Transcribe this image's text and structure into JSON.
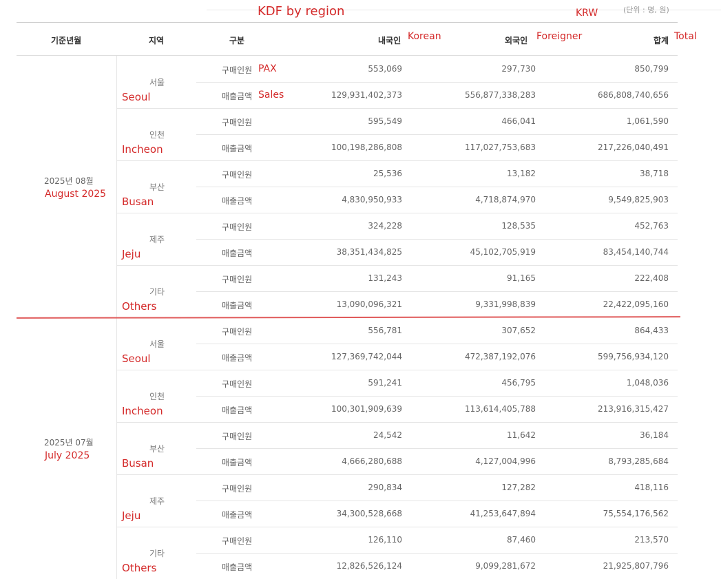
{
  "annotations": {
    "title": "KDF by region",
    "currency": "KRW",
    "korean": "Korean",
    "foreigner": "Foreigner",
    "total": "Total",
    "pax": "PAX",
    "sales": "Sales"
  },
  "unit_note": "(단위 : 명, 원)",
  "headers": {
    "period": "기준년월",
    "region": "지역",
    "category": "구분",
    "korean": "내국인",
    "foreigner": "외국인",
    "total": "합계"
  },
  "categories": {
    "pax": "구매인원",
    "sales": "매출금액"
  },
  "periods": [
    {
      "label": "2025년 08월",
      "en": "August 2025",
      "regions": [
        {
          "kr": "서울",
          "en": "Seoul",
          "pax": [
            "553,069",
            "297,730",
            "850,799"
          ],
          "sales": [
            "129,931,402,373",
            "556,877,338,283",
            "686,808,740,656"
          ]
        },
        {
          "kr": "인천",
          "en": "Incheon",
          "pax": [
            "595,549",
            "466,041",
            "1,061,590"
          ],
          "sales": [
            "100,198,286,808",
            "117,027,753,683",
            "217,226,040,491"
          ]
        },
        {
          "kr": "부산",
          "en": "Busan",
          "pax": [
            "25,536",
            "13,182",
            "38,718"
          ],
          "sales": [
            "4,830,950,933",
            "4,718,874,970",
            "9,549,825,903"
          ]
        },
        {
          "kr": "제주",
          "en": "Jeju",
          "pax": [
            "324,228",
            "128,535",
            "452,763"
          ],
          "sales": [
            "38,351,434,825",
            "45,102,705,919",
            "83,454,140,744"
          ]
        },
        {
          "kr": "기타",
          "en": "Others",
          "pax": [
            "131,243",
            "91,165",
            "222,408"
          ],
          "sales": [
            "13,090,096,321",
            "9,331,998,839",
            "22,422,095,160"
          ]
        }
      ]
    },
    {
      "label": "2025년 07월",
      "en": "July 2025",
      "regions": [
        {
          "kr": "서울",
          "en": "Seoul",
          "pax": [
            "556,781",
            "307,652",
            "864,433"
          ],
          "sales": [
            "127,369,742,044",
            "472,387,192,076",
            "599,756,934,120"
          ]
        },
        {
          "kr": "인천",
          "en": "Incheon",
          "pax": [
            "591,241",
            "456,795",
            "1,048,036"
          ],
          "sales": [
            "100,301,909,639",
            "113,614,405,788",
            "213,916,315,427"
          ]
        },
        {
          "kr": "부산",
          "en": "Busan",
          "pax": [
            "24,542",
            "11,642",
            "36,184"
          ],
          "sales": [
            "4,666,280,688",
            "4,127,004,996",
            "8,793,285,684"
          ]
        },
        {
          "kr": "제주",
          "en": "Jeju",
          "pax": [
            "290,834",
            "127,282",
            "418,116"
          ],
          "sales": [
            "34,300,528,668",
            "41,253,647,894",
            "75,554,176,562"
          ]
        },
        {
          "kr": "기타",
          "en": "Others",
          "pax": [
            "126,110",
            "87,460",
            "213,570"
          ],
          "sales": [
            "12,826,526,124",
            "9,099,281,672",
            "21,925,807,796"
          ]
        }
      ]
    }
  ]
}
